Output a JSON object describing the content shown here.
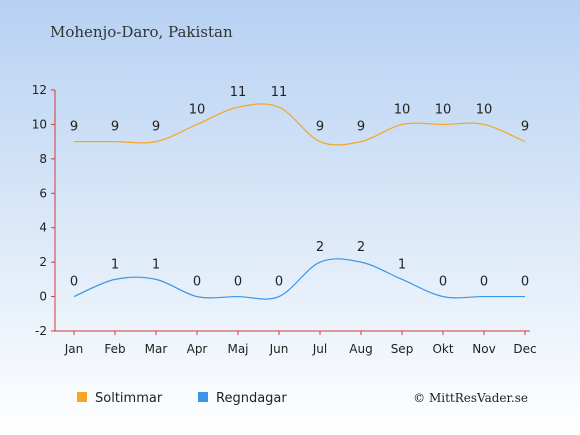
{
  "chart_data": {
    "type": "line",
    "title": "Mohenjo-Daro, Pakistan",
    "categories": [
      "Jan",
      "Feb",
      "Mar",
      "Apr",
      "Maj",
      "Jun",
      "Jul",
      "Aug",
      "Sep",
      "Okt",
      "Nov",
      "Dec"
    ],
    "series": [
      {
        "name": "Soltimmar",
        "color": "#f5a623",
        "values": [
          9,
          9,
          9,
          10,
          11,
          11,
          9,
          9,
          10,
          10,
          10,
          9
        ]
      },
      {
        "name": "Regndagar",
        "color": "#3a95e8",
        "values": [
          0,
          1,
          1,
          0,
          0,
          0,
          2,
          2,
          1,
          0,
          0,
          0
        ]
      }
    ],
    "yticks": [
      -2,
      0,
      2,
      4,
      6,
      8,
      10,
      12
    ],
    "ylim": [
      -2,
      12
    ],
    "grid": false,
    "legend_position": "bottom-left"
  },
  "credit": "© MittResVader.se"
}
